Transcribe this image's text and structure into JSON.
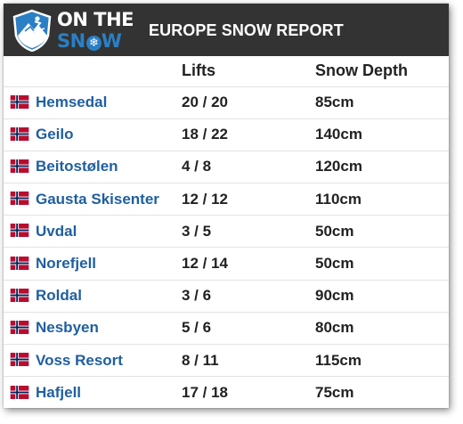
{
  "header": {
    "logo": {
      "line1": "ON THE",
      "line2_prefix": "SN",
      "line2_suffix": "W",
      "snowflake": "❄"
    },
    "title": "EUROPE SNOW REPORT"
  },
  "table": {
    "columns": [
      "",
      "Lifts",
      "Snow Depth"
    ],
    "rows": [
      {
        "name": "Hemsedal",
        "lifts": "20 / 20",
        "depth": "85cm"
      },
      {
        "name": "Geilo",
        "lifts": "18 / 22",
        "depth": "140cm"
      },
      {
        "name": "Beitostølen",
        "lifts": "4 / 8",
        "depth": "120cm"
      },
      {
        "name": "Gausta Skisenter",
        "lifts": "12 / 12",
        "depth": "110cm"
      },
      {
        "name": "Uvdal",
        "lifts": "3 / 5",
        "depth": "50cm"
      },
      {
        "name": "Norefjell",
        "lifts": "12 / 14",
        "depth": "50cm"
      },
      {
        "name": "Roldal",
        "lifts": "3 / 6",
        "depth": "90cm"
      },
      {
        "name": "Nesbyen",
        "lifts": "5 / 6",
        "depth": "80cm"
      },
      {
        "name": "Voss Resort",
        "lifts": "8 / 11",
        "depth": "115cm"
      },
      {
        "name": "Hafjell",
        "lifts": "17 / 18",
        "depth": "75cm"
      }
    ]
  },
  "icons": {
    "logo": "shield-mountain-skier-icon",
    "flag": "norway-flag-icon"
  },
  "colors": {
    "header_bg": "#333333",
    "brand_blue": "#2b7fc4",
    "resort_link": "#1f5fa0",
    "flag_red": "#ba0c2f",
    "flag_blue": "#00205b"
  }
}
